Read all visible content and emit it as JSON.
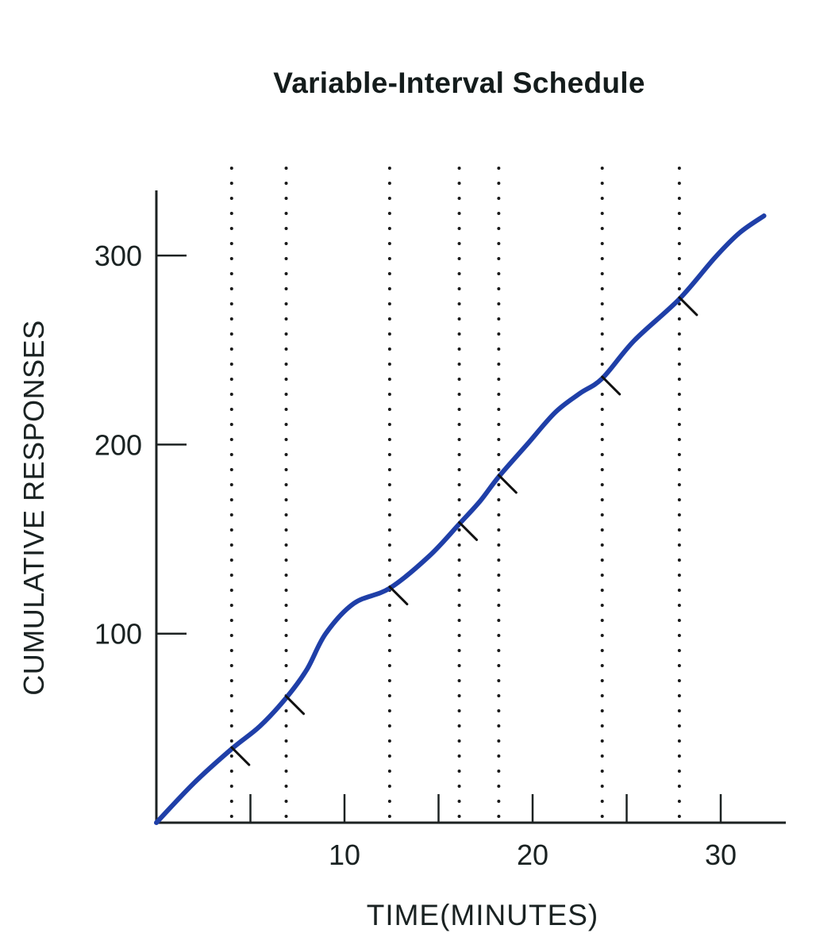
{
  "chart_data": {
    "type": "line",
    "title": "Variable-Interval Schedule",
    "xlabel": "TIME(MINUTES)",
    "ylabel": "CUMULATIVE RESPONSES",
    "xlim": [
      0,
      33
    ],
    "ylim": [
      0,
      335
    ],
    "xticks": [
      5,
      10,
      15,
      20,
      25,
      30
    ],
    "xtick_labels": [
      "10",
      "20",
      "30"
    ],
    "xtick_label_values": [
      10,
      20,
      30
    ],
    "yticks": [
      100,
      200,
      300
    ],
    "ytick_labels": [
      "100",
      "200",
      "300"
    ],
    "grid": false,
    "legend": null,
    "series": [
      {
        "name": "Cumulative responses",
        "color": "#1f3fa8",
        "x": [
          0,
          2,
          4.0,
          5.5,
          6.9,
          8.0,
          9.0,
          10.5,
          12.4,
          14.5,
          16.1,
          17.2,
          18.2,
          19.7,
          21.2,
          22.5,
          23.7,
          25.4,
          27.8,
          29.7,
          31.0,
          32.3
        ],
        "y": [
          0,
          21,
          39,
          51,
          66,
          81,
          100,
          116,
          124,
          141,
          158,
          170,
          183,
          200,
          217,
          227,
          235,
          255,
          277,
          299,
          312,
          321
        ]
      }
    ],
    "reinforcements": {
      "description": "Hash marks on the curve indicate reinforcement delivery; dotted vertical lines mark each reinforcement time",
      "x": [
        4.0,
        6.9,
        12.4,
        16.1,
        18.2,
        23.7,
        27.8
      ],
      "y": [
        39,
        66,
        124,
        158,
        183,
        235,
        277
      ]
    }
  }
}
